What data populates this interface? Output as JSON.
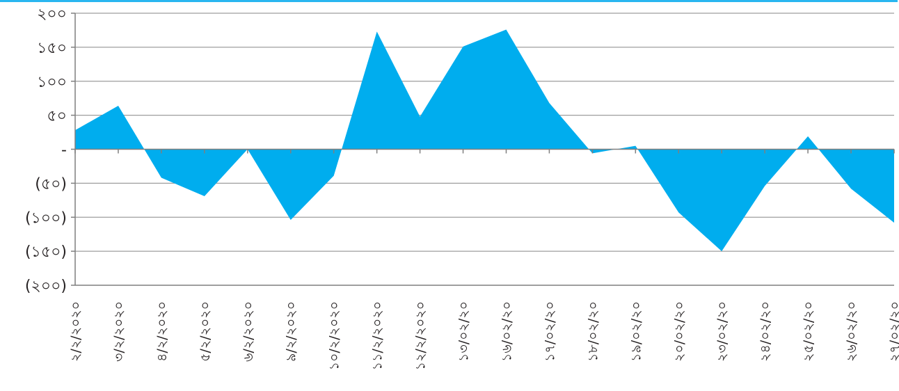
{
  "chart_data": {
    "type": "area",
    "title": "",
    "xlabel": "",
    "ylabel": "",
    "ylim": [
      -200,
      200
    ],
    "grid": true,
    "legend": "none",
    "colors": {
      "area": "#00adee",
      "grid": "#9d9d9d",
      "axis": "#7f7f7f",
      "top_rule": "#29b6f0"
    },
    "y_tick_values": [
      200,
      150,
      100,
      50,
      0,
      -50,
      -100,
      -150,
      -200
    ],
    "y_tick_labels": [
      "২০০",
      "১৫০",
      "১০০",
      "৫০",
      "-",
      "(৫০)",
      "(১০০)",
      "(১৫০)",
      "(২০০)"
    ],
    "categories": [
      "২/২/২০২০",
      "৩/২/২০২০",
      "৪/২/২০২০",
      "৫/২/২০২০",
      "৬/২/২০২০",
      "৯/২/২০২০",
      "১০/২/২০২০",
      "১১/২/২০২০",
      "১২/২/২০২০",
      "১৩/০২/২০",
      "১৬/০২/২০",
      "১৭/০২/২০",
      "১৮/০২/২০",
      "১৯/০২/২০",
      "২০/০২/২০",
      "২৩/০২/২০",
      "২৪/০২/২০",
      "২৫/০২/২০",
      "২৬/০২/২০",
      "২৭/০২/২০"
    ],
    "values": [
      28,
      64,
      -42,
      -69,
      0,
      -104,
      -39,
      173,
      48,
      151,
      176,
      68,
      -6,
      5,
      -93,
      -150,
      -54,
      19,
      -58,
      -108
    ]
  }
}
